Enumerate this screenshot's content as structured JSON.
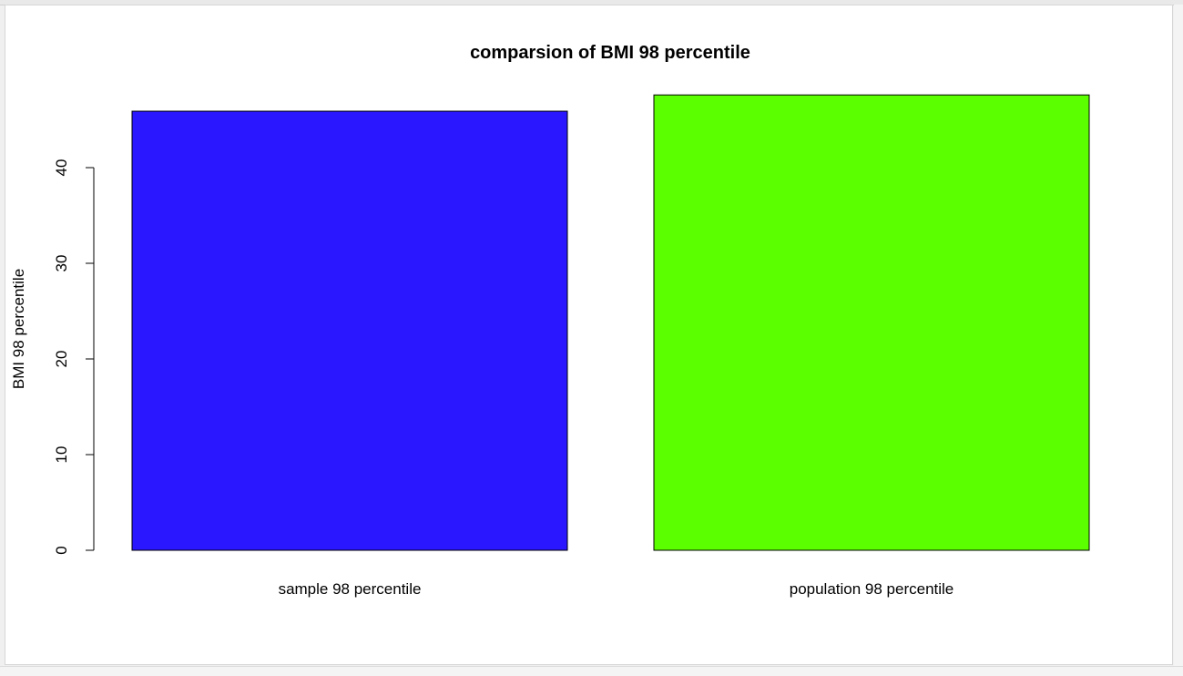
{
  "chart_data": {
    "type": "bar",
    "title": "comparsion of BMI 98 percentile",
    "xlabel": "",
    "ylabel": "BMI 98 percentile",
    "categories": [
      "sample 98 percentile",
      "population 98 percentile"
    ],
    "values": [
      45.9,
      47.6
    ],
    "colors": [
      "#2a16ff",
      "#5cff00"
    ],
    "yticks": [
      0,
      10,
      20,
      30,
      40
    ],
    "ylim": [
      0,
      48
    ],
    "grid": false,
    "legend": "none"
  }
}
